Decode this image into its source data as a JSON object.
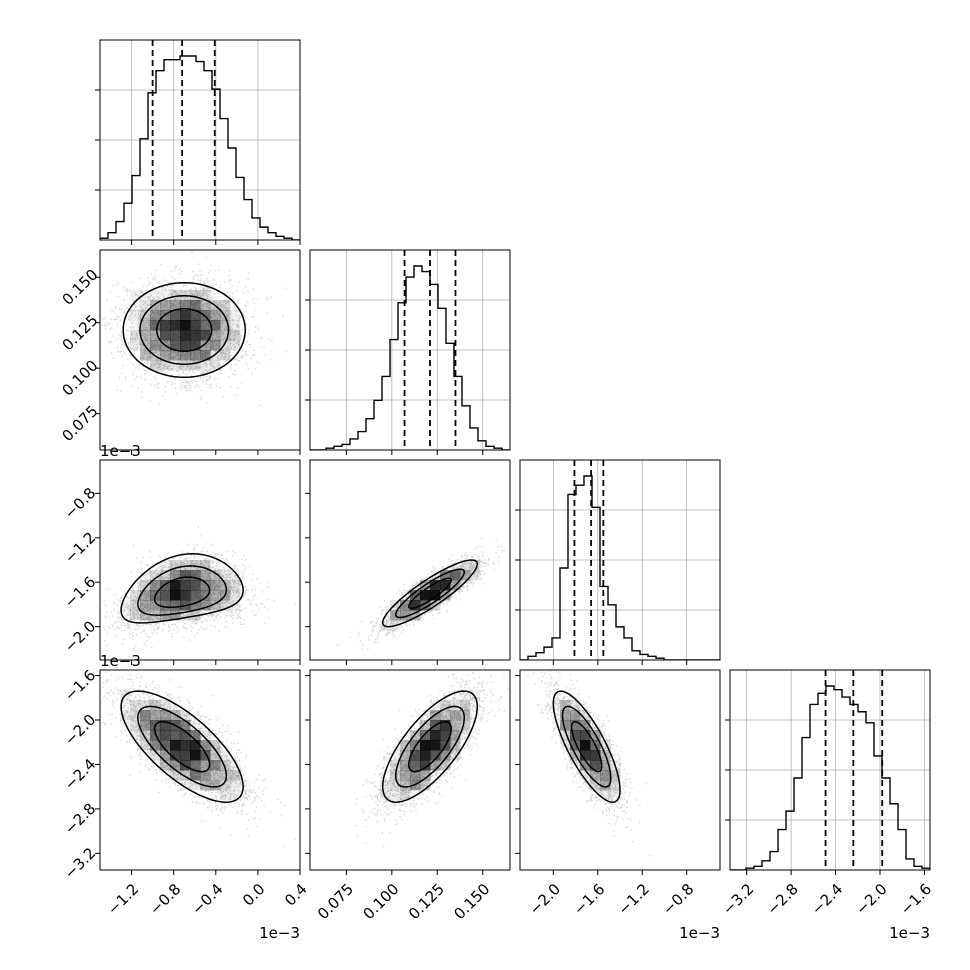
{
  "chart_data": {
    "type": "corner",
    "grid": true,
    "offset_text": "1e−3",
    "quantile_lines": "dashed",
    "params": [
      {
        "range": [
          -1.5,
          0.4
        ],
        "ticks": [
          -1.2,
          -0.8,
          -0.4,
          0.0,
          0.4
        ],
        "tick_labels": [
          "−1.2",
          "−0.8",
          "−0.4",
          "0.0",
          "0.4"
        ],
        "quantiles": [
          -1.0,
          -0.72,
          -0.41
        ],
        "hist": [
          0.01,
          0.04,
          0.1,
          0.2,
          0.35,
          0.55,
          0.8,
          0.92,
          0.98,
          0.98,
          1.0,
          1.0,
          0.97,
          0.92,
          0.82,
          0.66,
          0.5,
          0.34,
          0.22,
          0.12,
          0.07,
          0.04,
          0.02,
          0.01,
          0.0
        ]
      },
      {
        "range": [
          0.055,
          0.165
        ],
        "ticks": [
          0.075,
          0.1,
          0.125,
          0.15
        ],
        "tick_labels": [
          "0.075",
          "0.100",
          "0.125",
          "0.150"
        ],
        "quantiles": [
          0.107,
          0.121,
          0.135
        ],
        "hist": [
          0.0,
          0.0,
          0.01,
          0.02,
          0.03,
          0.06,
          0.1,
          0.17,
          0.27,
          0.4,
          0.6,
          0.8,
          0.94,
          1.0,
          0.97,
          0.9,
          0.77,
          0.58,
          0.4,
          0.24,
          0.12,
          0.05,
          0.02,
          0.01,
          0.0
        ]
      },
      {
        "range": [
          -2.3,
          -0.5
        ],
        "ticks": [
          -2.0,
          -1.6,
          -1.2,
          -0.8
        ],
        "tick_labels": [
          "−2.0",
          "−1.6",
          "−1.2",
          "−0.8"
        ],
        "quantiles": [
          -1.81,
          -1.66,
          -1.55
        ],
        "hist": [
          0.0,
          0.02,
          0.04,
          0.07,
          0.12,
          0.5,
          0.9,
          0.95,
          1.0,
          0.83,
          0.4,
          0.3,
          0.18,
          0.12,
          0.05,
          0.03,
          0.02,
          0.01,
          0.0,
          0.0,
          0.0,
          0.0,
          0.0,
          0.0,
          0.0
        ]
      },
      {
        "range": [
          -3.35,
          -1.55
        ],
        "ticks": [
          -3.2,
          -2.8,
          -2.4,
          -2.0,
          -1.6
        ],
        "tick_labels": [
          "−3.2",
          "−2.8",
          "−2.4",
          "−2.0",
          "−1.6"
        ],
        "quantiles": [
          -2.49,
          -2.24,
          -1.98
        ],
        "hist": [
          0.0,
          0.0,
          0.01,
          0.02,
          0.05,
          0.1,
          0.22,
          0.32,
          0.5,
          0.72,
          0.9,
          0.96,
          1.0,
          0.98,
          0.94,
          0.9,
          0.86,
          0.8,
          0.62,
          0.5,
          0.36,
          0.22,
          0.06,
          0.02,
          0.01
        ]
      }
    ],
    "pairs": [
      {
        "row": 1,
        "col": 0,
        "mean": [
          -0.7,
          0.121
        ],
        "sd": [
          0.29,
          0.013
        ],
        "corr": 0.0
      },
      {
        "row": 2,
        "col": 0,
        "mean": [
          -0.72,
          -1.7
        ],
        "sd": [
          0.29,
          0.15
        ],
        "corr": 0.3,
        "curve": 2.6
      },
      {
        "row": 2,
        "col": 1,
        "mean": [
          0.121,
          -1.7
        ],
        "sd": [
          0.013,
          0.15
        ],
        "corr": 0.88
      },
      {
        "row": 3,
        "col": 0,
        "mean": [
          -0.72,
          -2.24
        ],
        "sd": [
          0.29,
          0.25
        ],
        "corr": -0.72
      },
      {
        "row": 3,
        "col": 1,
        "mean": [
          0.121,
          -2.24
        ],
        "sd": [
          0.013,
          0.25
        ],
        "corr": 0.72
      },
      {
        "row": 3,
        "col": 2,
        "mean": [
          -1.7,
          -2.24
        ],
        "sd": [
          0.15,
          0.25
        ],
        "corr": -0.78
      }
    ]
  }
}
